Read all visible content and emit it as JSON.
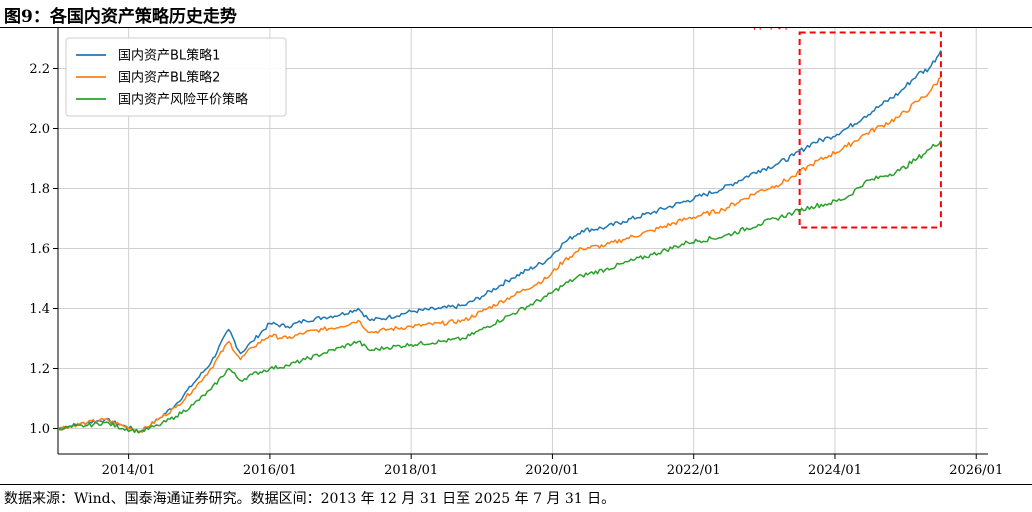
{
  "figure": {
    "title": "图9：各国内资产策略历史走势",
    "source": "数据来源：Wind、国泰海通证券研究。数据区间：2013 年 12 月 31 日至 2025 年 7 月 31 日。"
  },
  "chart_data": {
    "type": "line",
    "title": "",
    "xlabel": "",
    "ylabel": "",
    "x_ticks": [
      "2014/01",
      "2016/01",
      "2018/01",
      "2020/01",
      "2022/01",
      "2024/01",
      "2026/01"
    ],
    "y_ticks": [
      "1.0",
      "1.2",
      "1.4",
      "1.6",
      "1.8",
      "2.0",
      "2.2"
    ],
    "xlim": [
      "2013/01",
      "2026/03"
    ],
    "ylim": [
      0.915,
      2.335
    ],
    "grid": true,
    "legend_position": "top-left",
    "annotation": {
      "label": "样本外",
      "x_range": [
        "2023/07",
        "2025/07"
      ],
      "y_range": [
        1.67,
        2.32
      ],
      "color": "#ff0000",
      "style": "dashed"
    },
    "series": [
      {
        "name": "国内资产BL策略1",
        "color": "#1f77b4",
        "points": [
          [
            "2013/01",
            1.0
          ],
          [
            "2013/06",
            1.02
          ],
          [
            "2013/09",
            1.03
          ],
          [
            "2013/12",
            1.01
          ],
          [
            "2014/03",
            0.99
          ],
          [
            "2014/06",
            1.03
          ],
          [
            "2014/09",
            1.08
          ],
          [
            "2014/12",
            1.15
          ],
          [
            "2015/03",
            1.22
          ],
          [
            "2015/06",
            1.33
          ],
          [
            "2015/08",
            1.25
          ],
          [
            "2015/10",
            1.29
          ],
          [
            "2016/01",
            1.35
          ],
          [
            "2016/04",
            1.34
          ],
          [
            "2016/07",
            1.36
          ],
          [
            "2016/10",
            1.37
          ],
          [
            "2017/01",
            1.38
          ],
          [
            "2017/04",
            1.4
          ],
          [
            "2017/06",
            1.36
          ],
          [
            "2017/09",
            1.37
          ],
          [
            "2018/01",
            1.39
          ],
          [
            "2018/06",
            1.4
          ],
          [
            "2018/10",
            1.41
          ],
          [
            "2019/01",
            1.44
          ],
          [
            "2019/06",
            1.5
          ],
          [
            "2019/12",
            1.56
          ],
          [
            "2020/03",
            1.62
          ],
          [
            "2020/06",
            1.66
          ],
          [
            "2020/10",
            1.67
          ],
          [
            "2021/01",
            1.69
          ],
          [
            "2021/06",
            1.72
          ],
          [
            "2021/12",
            1.76
          ],
          [
            "2022/06",
            1.8
          ],
          [
            "2022/12",
            1.86
          ],
          [
            "2023/03",
            1.88
          ],
          [
            "2023/06",
            1.91
          ],
          [
            "2023/09",
            1.95
          ],
          [
            "2023/12",
            1.97
          ],
          [
            "2024/03",
            2.0
          ],
          [
            "2024/06",
            2.04
          ],
          [
            "2024/09",
            2.08
          ],
          [
            "2024/12",
            2.12
          ],
          [
            "2025/03",
            2.18
          ],
          [
            "2025/05",
            2.2
          ],
          [
            "2025/07",
            2.26
          ]
        ]
      },
      {
        "name": "国内资产BL策略2",
        "color": "#ff7f0e",
        "points": [
          [
            "2013/01",
            1.0
          ],
          [
            "2013/06",
            1.02
          ],
          [
            "2013/09",
            1.03
          ],
          [
            "2013/12",
            1.01
          ],
          [
            "2014/03",
            0.99
          ],
          [
            "2014/06",
            1.03
          ],
          [
            "2014/09",
            1.07
          ],
          [
            "2014/12",
            1.13
          ],
          [
            "2015/03",
            1.2
          ],
          [
            "2015/06",
            1.29
          ],
          [
            "2015/08",
            1.23
          ],
          [
            "2015/10",
            1.27
          ],
          [
            "2016/01",
            1.31
          ],
          [
            "2016/04",
            1.3
          ],
          [
            "2016/07",
            1.32
          ],
          [
            "2016/10",
            1.33
          ],
          [
            "2017/01",
            1.34
          ],
          [
            "2017/04",
            1.36
          ],
          [
            "2017/06",
            1.32
          ],
          [
            "2017/09",
            1.33
          ],
          [
            "2018/01",
            1.34
          ],
          [
            "2018/06",
            1.35
          ],
          [
            "2018/10",
            1.36
          ],
          [
            "2019/01",
            1.39
          ],
          [
            "2019/06",
            1.44
          ],
          [
            "2019/12",
            1.5
          ],
          [
            "2020/03",
            1.56
          ],
          [
            "2020/06",
            1.6
          ],
          [
            "2020/10",
            1.61
          ],
          [
            "2021/01",
            1.63
          ],
          [
            "2021/06",
            1.66
          ],
          [
            "2021/12",
            1.7
          ],
          [
            "2022/06",
            1.73
          ],
          [
            "2022/12",
            1.79
          ],
          [
            "2023/03",
            1.81
          ],
          [
            "2023/06",
            1.84
          ],
          [
            "2023/09",
            1.88
          ],
          [
            "2023/12",
            1.91
          ],
          [
            "2024/03",
            1.94
          ],
          [
            "2024/06",
            1.98
          ],
          [
            "2024/09",
            2.01
          ],
          [
            "2024/12",
            2.04
          ],
          [
            "2025/03",
            2.09
          ],
          [
            "2025/05",
            2.12
          ],
          [
            "2025/07",
            2.17
          ]
        ]
      },
      {
        "name": "国内资产风险平价策略",
        "color": "#2ca02c",
        "points": [
          [
            "2013/01",
            1.0
          ],
          [
            "2013/06",
            1.01
          ],
          [
            "2013/09",
            1.02
          ],
          [
            "2013/12",
            1.0
          ],
          [
            "2014/03",
            0.99
          ],
          [
            "2014/06",
            1.01
          ],
          [
            "2014/09",
            1.04
          ],
          [
            "2014/12",
            1.08
          ],
          [
            "2015/03",
            1.13
          ],
          [
            "2015/06",
            1.2
          ],
          [
            "2015/08",
            1.16
          ],
          [
            "2015/10",
            1.18
          ],
          [
            "2016/01",
            1.2
          ],
          [
            "2016/04",
            1.21
          ],
          [
            "2016/07",
            1.23
          ],
          [
            "2016/10",
            1.25
          ],
          [
            "2017/01",
            1.27
          ],
          [
            "2017/04",
            1.29
          ],
          [
            "2017/06",
            1.26
          ],
          [
            "2017/09",
            1.27
          ],
          [
            "2018/01",
            1.28
          ],
          [
            "2018/06",
            1.29
          ],
          [
            "2018/10",
            1.3
          ],
          [
            "2019/01",
            1.33
          ],
          [
            "2019/06",
            1.38
          ],
          [
            "2019/12",
            1.44
          ],
          [
            "2020/03",
            1.48
          ],
          [
            "2020/06",
            1.51
          ],
          [
            "2020/10",
            1.53
          ],
          [
            "2021/01",
            1.55
          ],
          [
            "2021/06",
            1.58
          ],
          [
            "2021/12",
            1.62
          ],
          [
            "2022/06",
            1.64
          ],
          [
            "2022/12",
            1.68
          ],
          [
            "2023/03",
            1.7
          ],
          [
            "2023/06",
            1.72
          ],
          [
            "2023/09",
            1.74
          ],
          [
            "2023/12",
            1.75
          ],
          [
            "2024/03",
            1.77
          ],
          [
            "2024/06",
            1.82
          ],
          [
            "2024/09",
            1.84
          ],
          [
            "2024/12",
            1.86
          ],
          [
            "2025/03",
            1.9
          ],
          [
            "2025/05",
            1.93
          ],
          [
            "2025/07",
            1.96
          ]
        ]
      }
    ]
  }
}
